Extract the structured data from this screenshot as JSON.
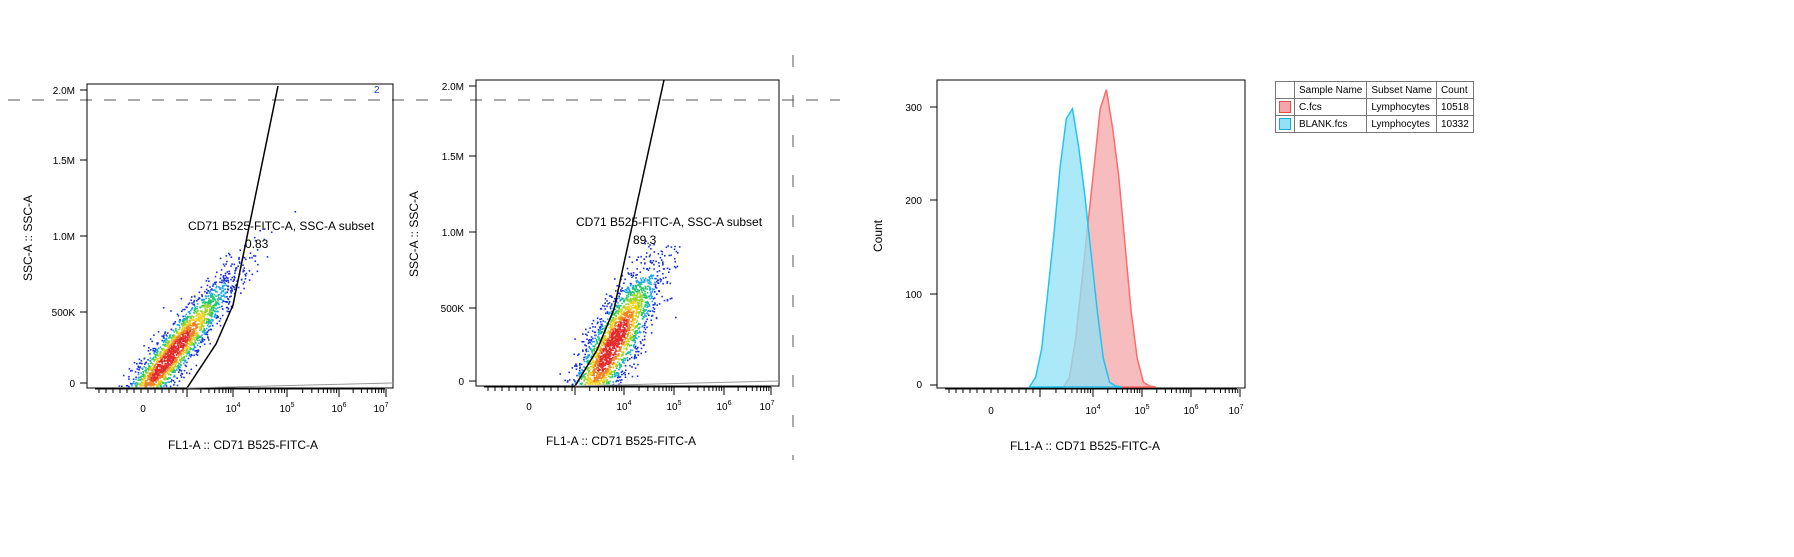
{
  "chart_data": [
    {
      "type": "scatter",
      "xlabel": "FL1-A :: CD71 B525-FITC-A",
      "ylabel": "SSC-A :: SSC-A",
      "x_ticks": [
        "0",
        "10",
        "10",
        "10",
        "10"
      ],
      "x_tick_exps": [
        "",
        "4",
        "5",
        "6",
        "7"
      ],
      "y_ticks": [
        "2.0M",
        "1.5M",
        "1.0M",
        "500K",
        "0"
      ],
      "y_tick_values": [
        2000000,
        1500000,
        1000000,
        500000,
        0
      ],
      "ylim": [
        0,
        2000000
      ],
      "gate_name": "CD71 B525-FITC-A, SSC-A subset",
      "gate_value": "0.83",
      "corner_label": "2"
    },
    {
      "type": "scatter",
      "xlabel": "FL1-A :: CD71 B525-FITC-A",
      "ylabel": "SSC-A :: SSC-A",
      "x_ticks": [
        "0",
        "10",
        "10",
        "10",
        "10"
      ],
      "x_tick_exps": [
        "",
        "4",
        "5",
        "6",
        "7"
      ],
      "y_ticks": [
        "2.0M",
        "1.5M",
        "1.0M",
        "500K",
        "0"
      ],
      "y_tick_values": [
        2000000,
        1500000,
        1000000,
        500000,
        0
      ],
      "ylim": [
        0,
        2000000
      ],
      "gate_name": "CD71 B525-FITC-A, SSC-A subset",
      "gate_value": "89.3"
    },
    {
      "type": "area",
      "xlabel": "FL1-A :: CD71 B525-FITC-A",
      "ylabel": "Count",
      "x_ticks": [
        "0",
        "10",
        "10",
        "10",
        "10"
      ],
      "x_tick_exps": [
        "",
        "4",
        "5",
        "6",
        "7"
      ],
      "y_ticks": [
        "300",
        "200",
        "100",
        "0"
      ],
      "y_tick_values": [
        300,
        200,
        100,
        0
      ],
      "ylim": [
        0,
        320
      ],
      "series": [
        {
          "name": "C.fcs",
          "color": "#ff6b6b",
          "fill": "#f4a6a8",
          "x": [
            0.41,
            0.43,
            0.45,
            0.47,
            0.49,
            0.51,
            0.53,
            0.55,
            0.57,
            0.59,
            0.61,
            0.63,
            0.65,
            0.67,
            0.69,
            0.71
          ],
          "y": [
            0,
            10,
            50,
            110,
            170,
            230,
            290,
            310,
            270,
            220,
            150,
            80,
            30,
            5,
            1,
            0
          ]
        },
        {
          "name": "BLANK.fcs",
          "color": "#22c4ee",
          "fill": "#8fe2f7",
          "x": [
            0.3,
            0.32,
            0.34,
            0.36,
            0.38,
            0.4,
            0.42,
            0.44,
            0.46,
            0.48,
            0.5,
            0.52,
            0.54,
            0.56,
            0.58,
            0.6
          ],
          "y": [
            0,
            10,
            40,
            100,
            160,
            230,
            280,
            290,
            250,
            200,
            140,
            80,
            30,
            5,
            1,
            0
          ]
        }
      ]
    }
  ],
  "legend": {
    "headers": [
      "Sample Name",
      "Subset Name",
      "Count"
    ],
    "rows": [
      {
        "sample": "C.fcs",
        "subset": "Lymphocytes",
        "count": "10518",
        "color": "#f4a6a8",
        "border": "#e05050"
      },
      {
        "sample": "BLANK.fcs",
        "subset": "Lymphocytes",
        "count": "10332",
        "color": "#8fe2f7",
        "border": "#1aa8d8"
      }
    ]
  }
}
